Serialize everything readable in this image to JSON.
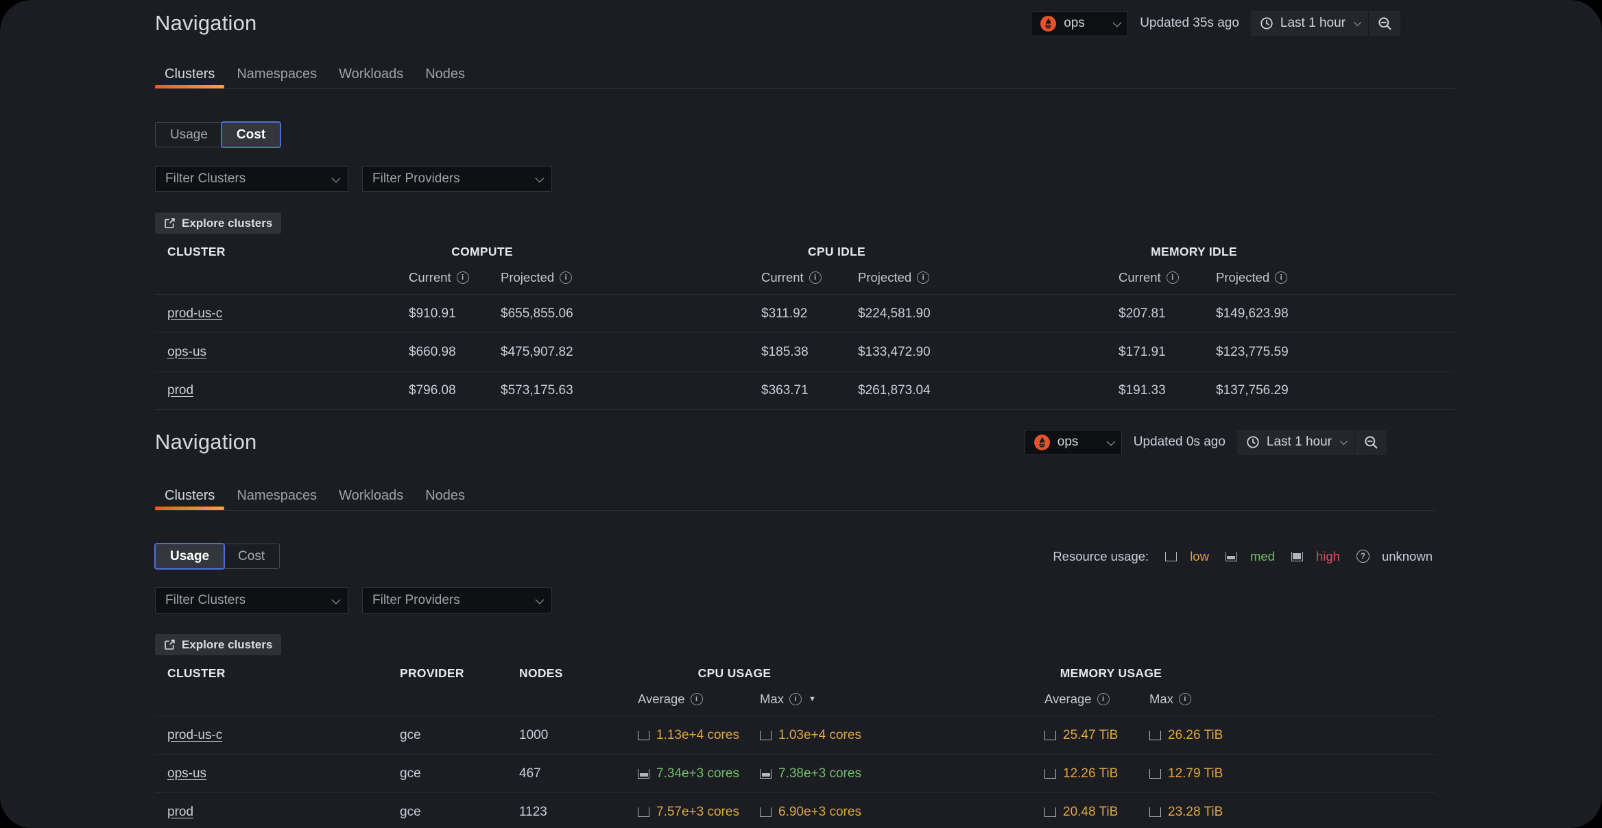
{
  "colors": {
    "orange": "#E0A63F",
    "green": "#71BE69",
    "red": "#E24A5F",
    "default": "#CCCCDC",
    "accent_blue": "#4D6ED9",
    "prometheus_orange": "#E6522C",
    "tab_underline_start": "#EC5B1C",
    "tab_underline_end": "#F2A24E"
  },
  "panels": [
    {
      "title": "Navigation",
      "header": {
        "datasource_value": "ops",
        "updated": "Updated 35s ago",
        "time_range": "Last 1 hour"
      },
      "tabs": [
        "Clusters",
        "Namespaces",
        "Workloads",
        "Nodes"
      ],
      "active_tab": "Clusters",
      "view_toggle": {
        "usage_label": "Usage",
        "cost_label": "Cost",
        "selected": "Cost"
      },
      "filters": {
        "clusters_placeholder": "Filter Clusters",
        "providers_placeholder": "Filter Providers"
      },
      "explore_label": "Explore clusters",
      "table": {
        "group_headers": [
          "CLUSTER",
          "COMPUTE",
          "CPU IDLE",
          "MEMORY IDLE"
        ],
        "current_label": "Current",
        "projected_label": "Projected",
        "rows": [
          {
            "cluster": "prod-us-c",
            "compute_current": "$910.91",
            "compute_projected": "$655,855.06",
            "cpu_idle_current": "$311.92",
            "cpu_idle_projected": "$224,581.90",
            "memory_idle_current": "$207.81",
            "memory_idle_projected": "$149,623.98"
          },
          {
            "cluster": "ops-us",
            "compute_current": "$660.98",
            "compute_projected": "$475,907.82",
            "cpu_idle_current": "$185.38",
            "cpu_idle_projected": "$133,472.90",
            "memory_idle_current": "$171.91",
            "memory_idle_projected": "$123,775.59"
          },
          {
            "cluster": "prod",
            "compute_current": "$796.08",
            "compute_projected": "$573,175.63",
            "cpu_idle_current": "$363.71",
            "cpu_idle_projected": "$261,873.04",
            "memory_idle_current": "$191.33",
            "memory_idle_projected": "$137,756.29"
          }
        ]
      }
    },
    {
      "title": "Navigation",
      "header": {
        "datasource_value": "ops",
        "updated": "Updated 0s ago",
        "time_range": "Last 1 hour"
      },
      "tabs": [
        "Clusters",
        "Namespaces",
        "Workloads",
        "Nodes"
      ],
      "active_tab": "Clusters",
      "view_toggle": {
        "usage_label": "Usage",
        "cost_label": "Cost",
        "selected": "Usage"
      },
      "legend": {
        "label": "Resource usage:",
        "items": [
          {
            "text": "low",
            "level": "low",
            "color": "orange"
          },
          {
            "text": "med",
            "level": "med",
            "color": "green"
          },
          {
            "text": "high",
            "level": "high",
            "color": "red"
          },
          {
            "text": "unknown",
            "level": "unknown",
            "color": "default"
          }
        ]
      },
      "filters": {
        "clusters_placeholder": "Filter Clusters",
        "providers_placeholder": "Filter Providers"
      },
      "explore_label": "Explore clusters",
      "table": {
        "group_headers": [
          "CLUSTER",
          "PROVIDER",
          "NODES",
          "CPU USAGE",
          "MEMORY USAGE"
        ],
        "average_label": "Average",
        "max_label": "Max",
        "sorted_column": "cpu_max",
        "sort_direction": "desc",
        "rows": [
          {
            "cluster": "prod-us-c",
            "provider": "gce",
            "nodes": "1000",
            "cpu_avg": {
              "text": "1.13e+4 cores",
              "level": "low",
              "color": "orange"
            },
            "cpu_max": {
              "text": "1.03e+4 cores",
              "level": "low",
              "color": "orange"
            },
            "mem_avg": {
              "text": "25.47 TiB",
              "level": "low",
              "color": "orange"
            },
            "mem_max": {
              "text": "26.26 TiB",
              "level": "low",
              "color": "orange"
            }
          },
          {
            "cluster": "ops-us",
            "provider": "gce",
            "nodes": "467",
            "cpu_avg": {
              "text": "7.34e+3 cores",
              "level": "med",
              "color": "green"
            },
            "cpu_max": {
              "text": "7.38e+3 cores",
              "level": "med",
              "color": "green"
            },
            "mem_avg": {
              "text": "12.26 TiB",
              "level": "low",
              "color": "orange"
            },
            "mem_max": {
              "text": "12.79 TiB",
              "level": "low",
              "color": "orange"
            }
          },
          {
            "cluster": "prod",
            "provider": "gce",
            "nodes": "1123",
            "cpu_avg": {
              "text": "7.57e+3 cores",
              "level": "low",
              "color": "orange"
            },
            "cpu_max": {
              "text": "6.90e+3 cores",
              "level": "low",
              "color": "orange"
            },
            "mem_avg": {
              "text": "20.48 TiB",
              "level": "low",
              "color": "orange"
            },
            "mem_max": {
              "text": "23.28 TiB",
              "level": "low",
              "color": "orange"
            }
          }
        ]
      }
    }
  ]
}
